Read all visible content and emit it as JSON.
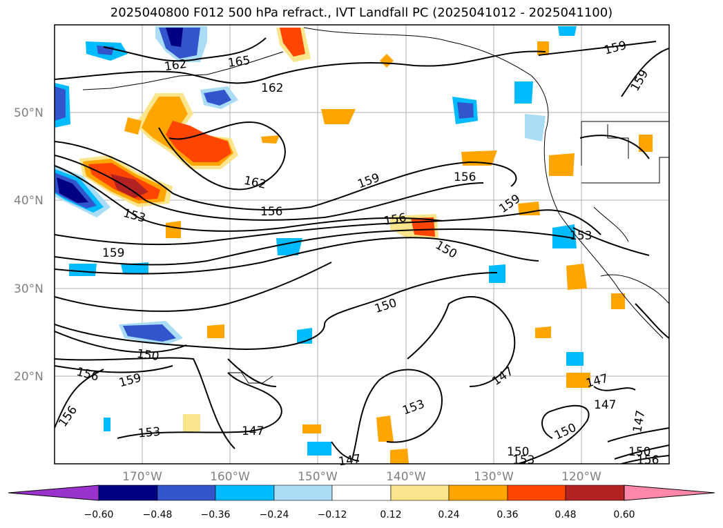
{
  "title": "2025040800 F012 500 hPa refract., IVT Landfall PC (2025041012 - 2025041100)",
  "lat_labels": [
    "50°N",
    "40°N",
    "30°N",
    "20°N"
  ],
  "lon_labels": [
    "170°W",
    "160°W",
    "150°W",
    "140°W",
    "130°W",
    "120°W"
  ],
  "contour_labels": [
    "162",
    "165",
    "162",
    "159",
    "159",
    "162",
    "156",
    "159",
    "156",
    "153",
    "153",
    "159",
    "150",
    "150",
    "150",
    "156",
    "159",
    "156",
    "147",
    "153",
    "153",
    "147",
    "147",
    "147",
    "147",
    "150",
    "150",
    "153",
    "156"
  ],
  "colorbar": {
    "ticks": [
      "−0.60",
      "−0.48",
      "−0.36",
      "−0.24",
      "−0.12",
      "0.12",
      "0.24",
      "0.36",
      "0.48",
      "0.60"
    ],
    "colors": [
      "#9933cc",
      "#000080",
      "#3355cc",
      "#00bbff",
      "#aaddf5",
      "#ffffff",
      "#fbe58c",
      "#ffa500",
      "#ff4500",
      "#b22222",
      "#ff88aa"
    ]
  }
}
